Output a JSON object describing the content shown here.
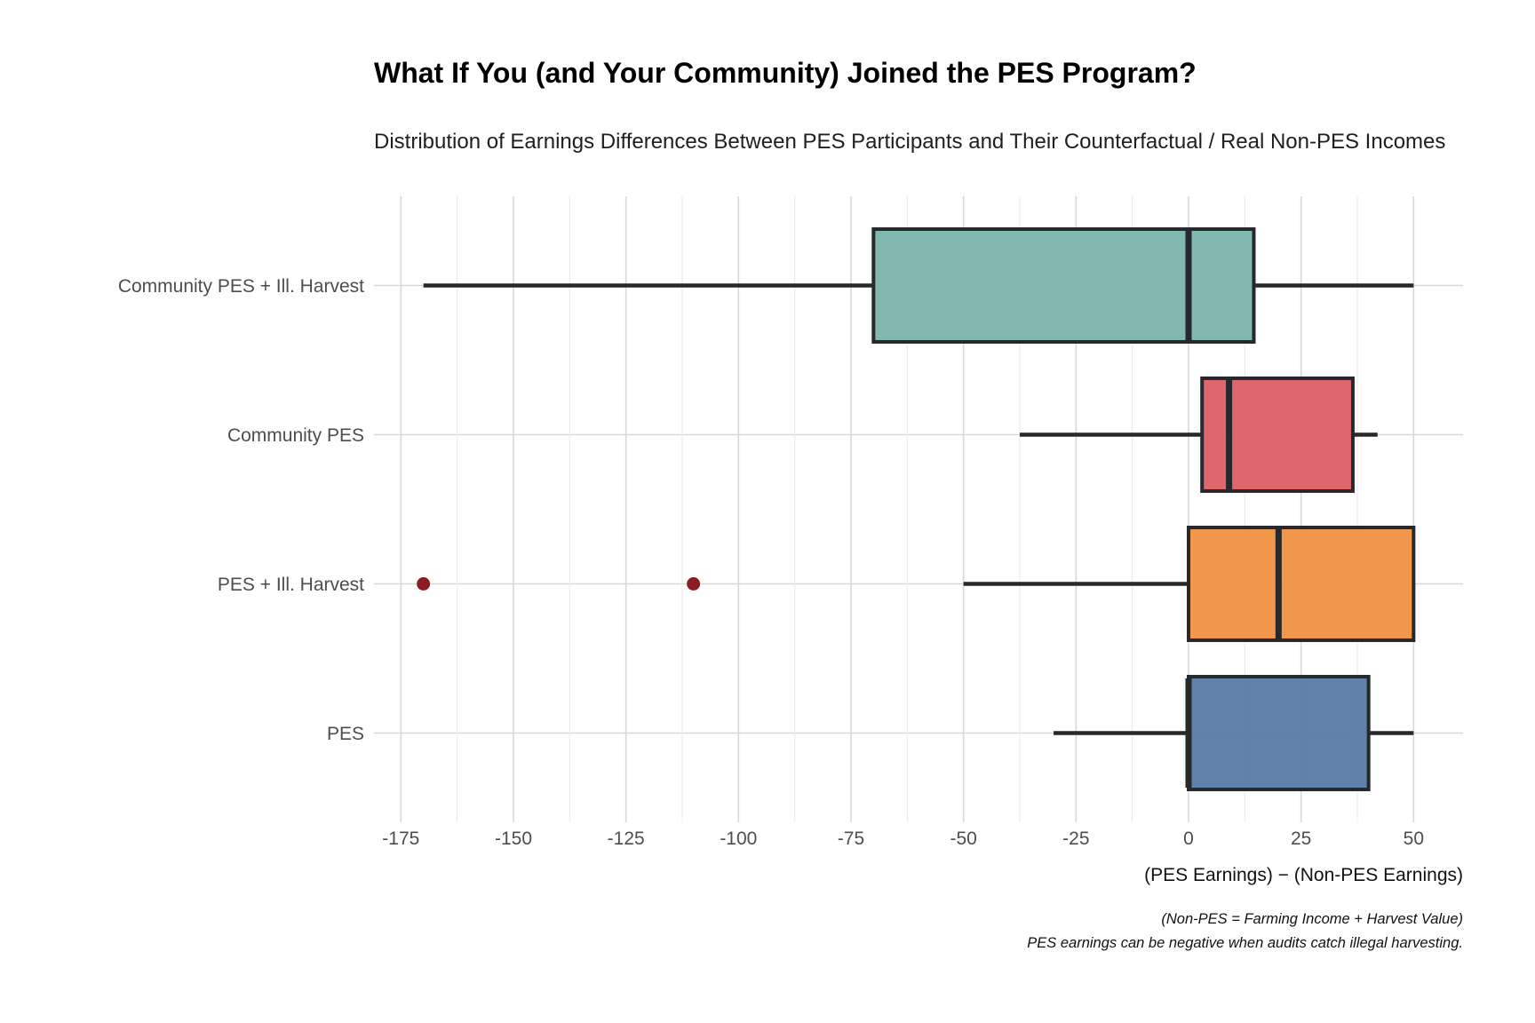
{
  "chart_data": {
    "type": "boxplot",
    "orientation": "horizontal",
    "title": "What If You (and Your Community) Joined the PES Program?",
    "subtitle": "Distribution of Earnings Differences Between PES Participants and Their Counterfactual / Real Non-PES Incomes",
    "xlabel": "(PES Earnings) − (Non-PES Earnings)",
    "caption_line1": "(Non-PES = Farming Income + Harvest Value)",
    "caption_line2": "PES earnings can be negative when audits catch illegal harvesting.",
    "x_ticks": [
      -175,
      -150,
      -125,
      -100,
      -75,
      -50,
      -25,
      0,
      25,
      50
    ],
    "x_minor_gridlines_between_majors": true,
    "xlim": [
      -181,
      61
    ],
    "grid": "on",
    "legend": "none",
    "categories_top_to_bottom": [
      "Community PES + Ill. Harvest",
      "Community PES",
      "PES + Ill. Harvest",
      "PES"
    ],
    "series": [
      {
        "label": "Community PES + Ill. Harvest",
        "fill": "#79B4AA",
        "whisker_low": -170,
        "q1": -70,
        "median": 0,
        "q3": 14.5,
        "whisker_high": 50,
        "outliers": []
      },
      {
        "label": "Community PES",
        "fill": "#DC5E64",
        "whisker_low": -37.5,
        "q1": 3,
        "median": 9,
        "q3": 36.5,
        "whisker_high": 42,
        "outliers": []
      },
      {
        "label": "PES + Ill. Harvest",
        "fill": "#EF9040",
        "whisker_low": -50,
        "q1": 0,
        "median": 20,
        "q3": 50,
        "whisker_high": 50,
        "outliers": [
          -170,
          -110
        ]
      },
      {
        "label": "PES",
        "fill": "#5679A4",
        "whisker_low": -30,
        "q1": 0,
        "median": 0,
        "q3": 40,
        "whisker_high": 50,
        "outliers": []
      }
    ],
    "colors": {
      "box_outline": "#26282c",
      "outlier_dot": "#8B1D20",
      "gridline_major": "#d8d8d8",
      "gridline_minor": "#ececec",
      "axis_text": "#4d4d4d",
      "background": "#ffffff"
    }
  }
}
